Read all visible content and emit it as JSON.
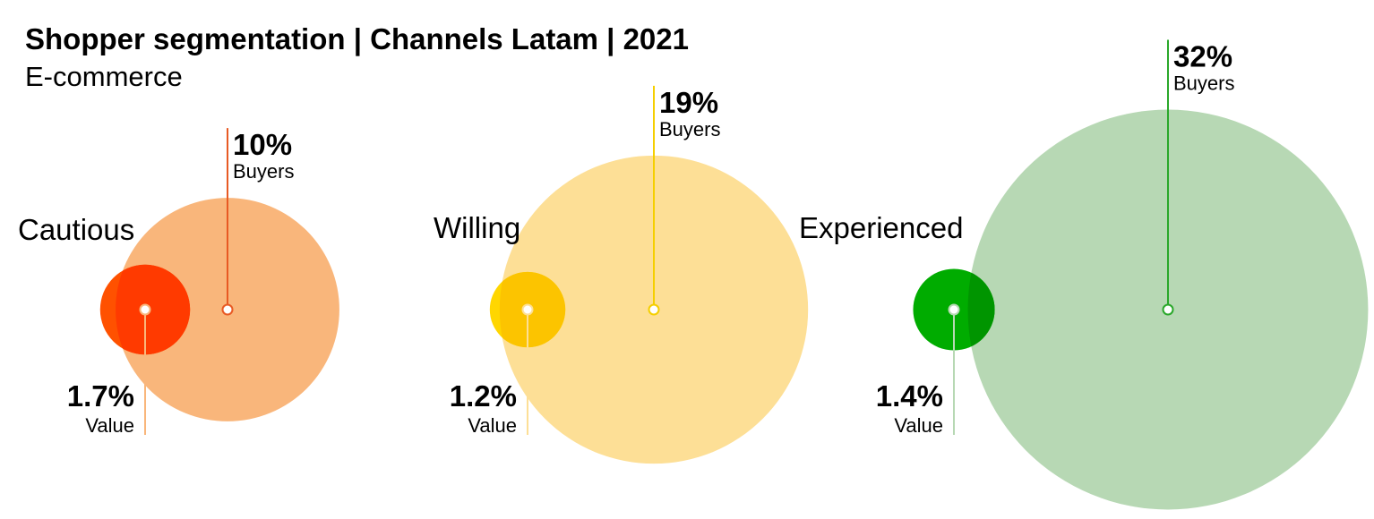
{
  "title": "Shopper segmentation | Channels Latam | 2021",
  "subtitle": "E-commerce",
  "colors": {
    "text": "#000000",
    "Cautious": {
      "value": "#ff5100",
      "buyers": "#f9b67b",
      "line": "#e85a24",
      "overlap": "#ff3a00"
    },
    "Willing": {
      "value": "#ffd600",
      "buyers": "#fddf96",
      "line": "#f5cf00",
      "overlap": "#fcc400"
    },
    "Experienced": {
      "value": "#00ac00",
      "buyers": "#b7d8b4",
      "line": "#2aa82a",
      "overlap": "#009500"
    }
  },
  "chart_data": {
    "type": "bubble",
    "title": "Shopper segmentation | Channels Latam | 2021",
    "subtitle": "E-commerce",
    "metric_labels": {
      "value": "Value",
      "buyers": "Buyers"
    },
    "segments": [
      {
        "name": "Cautious",
        "value": 1.7,
        "value_label": "1.7%",
        "buyers": 10,
        "buyers_label": "10%"
      },
      {
        "name": "Willing",
        "value": 1.2,
        "value_label": "1.2%",
        "buyers": 19,
        "buyers_label": "19%"
      },
      {
        "name": "Experienced",
        "value": 1.4,
        "value_label": "1.4%",
        "buyers": 32,
        "buyers_label": "32%"
      }
    ]
  }
}
